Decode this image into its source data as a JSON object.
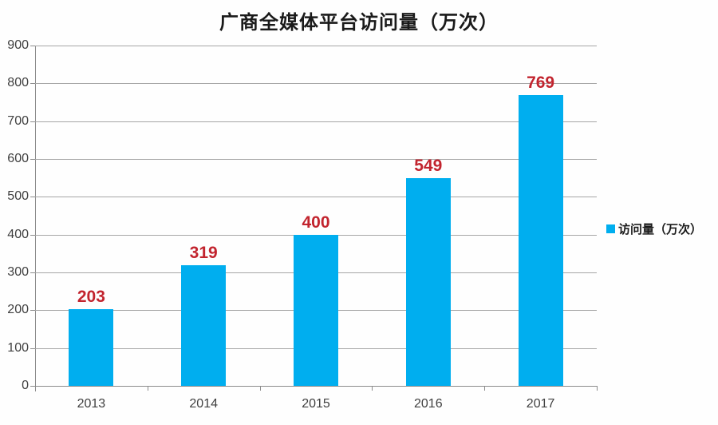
{
  "title": "广商全媒体平台访问量（万次）",
  "legend": {
    "label": "访问量（万次）",
    "marker_color": "#00AEEF"
  },
  "colors": {
    "bar": "#00AEEF",
    "data_label": "#C2242E",
    "gridline": "#A6A6A6",
    "axis": "#8C8C8C",
    "tick_text": "#3F3F3F"
  },
  "chart_data": {
    "type": "bar",
    "title": "广商全媒体平台访问量（万次）",
    "categories": [
      "2013",
      "2014",
      "2015",
      "2016",
      "2017"
    ],
    "series": [
      {
        "name": "访问量（万次）",
        "values": [
          203,
          319,
          400,
          549,
          769
        ]
      }
    ],
    "data_labels": [
      203,
      319,
      400,
      549,
      769
    ],
    "xlabel": "",
    "ylabel": "",
    "ylim": [
      0,
      900
    ],
    "yticks": [
      0,
      100,
      200,
      300,
      400,
      500,
      600,
      700,
      800,
      900
    ],
    "grid": true,
    "legend_position": "right"
  }
}
